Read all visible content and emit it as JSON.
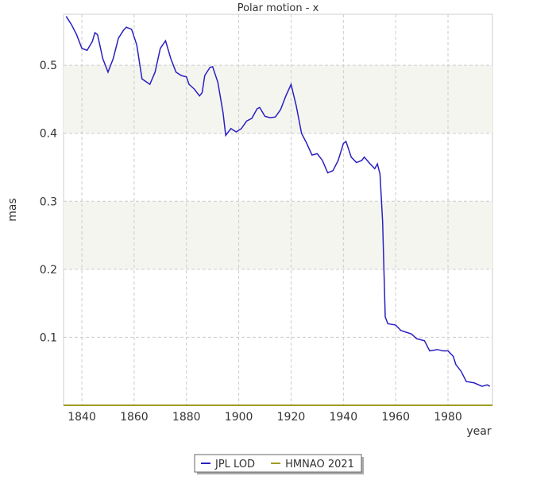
{
  "chart_data": {
    "type": "line",
    "title": "Polar motion - x",
    "xlabel": "year",
    "ylabel": "mas",
    "xlim": [
      1833,
      1997
    ],
    "xticks": [
      1840,
      1860,
      1880,
      1900,
      1920,
      1940,
      1960,
      1980
    ],
    "ylim": [
      0,
      0.575
    ],
    "yticks": [
      0.1,
      0.2,
      0.3,
      0.4,
      0.5
    ],
    "grid": true,
    "banded": true,
    "legend": "bottom",
    "series": [
      {
        "name": "JPL LOD",
        "color": "#2a1fc0",
        "x": [
          1834,
          1836,
          1838,
          1840,
          1842,
          1844,
          1845,
          1846,
          1848,
          1850,
          1852,
          1854,
          1856,
          1857,
          1859,
          1861,
          1863,
          1866,
          1868,
          1870,
          1872,
          1874,
          1876,
          1878,
          1880,
          1881,
          1883,
          1885,
          1886,
          1887,
          1889,
          1890,
          1892,
          1894,
          1895,
          1897,
          1899,
          1901,
          1903,
          1905,
          1907,
          1908,
          1910,
          1912,
          1914,
          1916,
          1918,
          1920,
          1922,
          1924,
          1926,
          1928,
          1930,
          1932,
          1934,
          1936,
          1938,
          1940,
          1941,
          1943,
          1945,
          1947,
          1948,
          1950,
          1952,
          1953,
          1954,
          1955,
          1956,
          1957,
          1960,
          1962,
          1966,
          1968,
          1971,
          1973,
          1976,
          1978,
          1980,
          1982,
          1983,
          1985,
          1987,
          1990,
          1993,
          1995,
          1996
        ],
        "values": [
          0.572,
          0.56,
          0.545,
          0.525,
          0.522,
          0.535,
          0.548,
          0.545,
          0.51,
          0.49,
          0.51,
          0.54,
          0.552,
          0.556,
          0.553,
          0.53,
          0.48,
          0.472,
          0.49,
          0.525,
          0.536,
          0.51,
          0.49,
          0.485,
          0.483,
          0.472,
          0.465,
          0.455,
          0.46,
          0.485,
          0.497,
          0.498,
          0.475,
          0.43,
          0.397,
          0.407,
          0.402,
          0.407,
          0.418,
          0.422,
          0.436,
          0.438,
          0.425,
          0.423,
          0.424,
          0.435,
          0.455,
          0.472,
          0.44,
          0.4,
          0.385,
          0.368,
          0.37,
          0.36,
          0.342,
          0.345,
          0.36,
          0.385,
          0.388,
          0.365,
          0.357,
          0.36,
          0.365,
          0.356,
          0.348,
          0.355,
          0.34,
          0.27,
          0.13,
          0.12,
          0.118,
          0.11,
          0.105,
          0.098,
          0.095,
          0.08,
          0.082,
          0.08,
          0.08,
          0.072,
          0.06,
          0.05,
          0.035,
          0.033,
          0.028,
          0.03,
          0.028
        ]
      },
      {
        "name": "HMNAO 2021",
        "color": "#a09a20",
        "x": [
          1833,
          1997
        ],
        "values": [
          0,
          0
        ]
      }
    ]
  }
}
